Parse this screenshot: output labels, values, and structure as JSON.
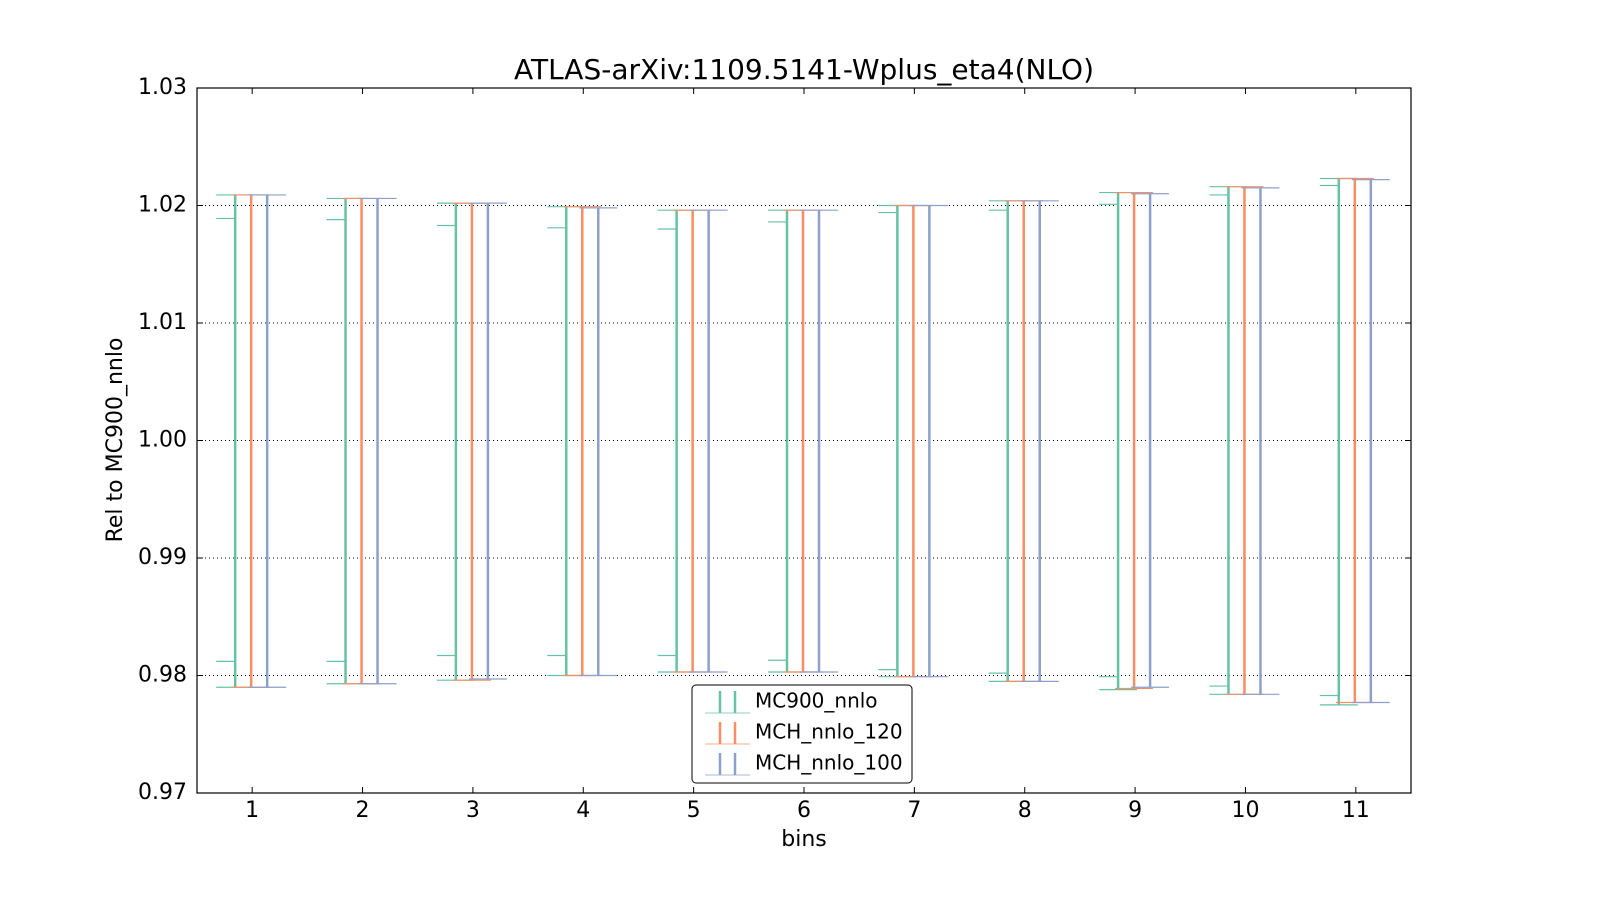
{
  "chart_data": {
    "type": "errorbar",
    "title": "ATLAS-arXiv:1109.5141-Wplus_eta4(NLO)",
    "x_label": "bins",
    "y_label": "Rel to MC900_nnlo",
    "x": [
      1,
      2,
      3,
      4,
      5,
      6,
      7,
      8,
      9,
      10,
      11
    ],
    "xlim": [
      0.5,
      11.5
    ],
    "xticks": [
      1,
      2,
      3,
      4,
      5,
      6,
      7,
      8,
      9,
      10,
      11
    ],
    "ylim": [
      0.97,
      1.03
    ],
    "yticks": [
      0.97,
      0.98,
      0.99,
      {
        "value": 1.0,
        "label": "1.00"
      },
      1.01,
      1.02,
      1.03
    ],
    "grid": true,
    "legend": "lower center",
    "series": [
      {
        "name": "MC900_nnlo",
        "color": "#66c2a5",
        "upper": [
          1.0209,
          1.0206,
          1.0202,
          1.0199,
          1.0196,
          1.0196,
          1.02,
          1.0204,
          1.0211,
          1.0216,
          1.0223
        ],
        "lower": [
          0.979,
          0.9793,
          0.9796,
          0.98,
          0.9803,
          0.9803,
          0.9799,
          0.9795,
          0.9788,
          0.9784,
          0.9775
        ],
        "inner_upper": [
          1.0189,
          1.0188,
          1.0183,
          1.0181,
          1.018,
          1.0186,
          1.0194,
          1.0196,
          1.0201,
          1.0209,
          1.0217
        ],
        "inner_lower": [
          0.9812,
          0.9812,
          0.9817,
          0.9817,
          0.9817,
          0.9813,
          0.9805,
          0.9802,
          0.9799,
          0.9791,
          0.9783
        ]
      },
      {
        "name": "MCH_nnlo_120",
        "color": "#fc8d62",
        "upper": [
          1.0209,
          1.0206,
          1.0202,
          1.0199,
          1.0196,
          1.0196,
          1.02,
          1.0204,
          1.0211,
          1.0216,
          1.0223
        ],
        "lower": [
          0.979,
          0.9793,
          0.9796,
          0.98,
          0.9803,
          0.9803,
          0.9799,
          0.9795,
          0.9789,
          0.9784,
          0.9777
        ]
      },
      {
        "name": "MCH_nnlo_100",
        "color": "#8da0cb",
        "upper": [
          1.0209,
          1.0206,
          1.0202,
          1.0198,
          1.0196,
          1.0196,
          1.02,
          1.0204,
          1.021,
          1.0215,
          1.0222
        ],
        "lower": [
          0.979,
          0.9793,
          0.9797,
          0.98,
          0.9803,
          0.9803,
          0.9799,
          0.9795,
          0.979,
          0.9784,
          0.9777
        ]
      }
    ]
  }
}
